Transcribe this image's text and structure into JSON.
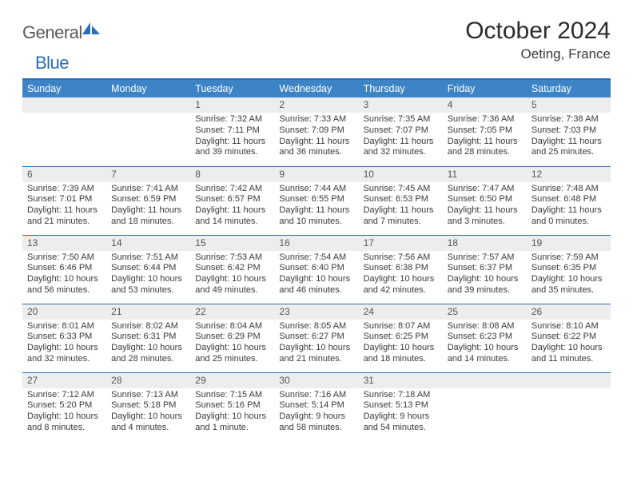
{
  "brand": {
    "name_a": "General",
    "name_b": "Blue"
  },
  "title": "October 2024",
  "location": "Oeting, France",
  "colors": {
    "header_bg": "#3d84c6",
    "accent": "#2a6fb5",
    "daynum_bg": "#ededed",
    "text": "#3a3a3a",
    "title_text": "#2b2b2b"
  },
  "weekdays": [
    "Sunday",
    "Monday",
    "Tuesday",
    "Wednesday",
    "Thursday",
    "Friday",
    "Saturday"
  ],
  "weeks": [
    [
      null,
      null,
      {
        "n": "1",
        "sr": "7:32 AM",
        "ss": "7:11 PM",
        "dl": "11 hours and 39 minutes."
      },
      {
        "n": "2",
        "sr": "7:33 AM",
        "ss": "7:09 PM",
        "dl": "11 hours and 36 minutes."
      },
      {
        "n": "3",
        "sr": "7:35 AM",
        "ss": "7:07 PM",
        "dl": "11 hours and 32 minutes."
      },
      {
        "n": "4",
        "sr": "7:36 AM",
        "ss": "7:05 PM",
        "dl": "11 hours and 28 minutes."
      },
      {
        "n": "5",
        "sr": "7:38 AM",
        "ss": "7:03 PM",
        "dl": "11 hours and 25 minutes."
      }
    ],
    [
      {
        "n": "6",
        "sr": "7:39 AM",
        "ss": "7:01 PM",
        "dl": "11 hours and 21 minutes."
      },
      {
        "n": "7",
        "sr": "7:41 AM",
        "ss": "6:59 PM",
        "dl": "11 hours and 18 minutes."
      },
      {
        "n": "8",
        "sr": "7:42 AM",
        "ss": "6:57 PM",
        "dl": "11 hours and 14 minutes."
      },
      {
        "n": "9",
        "sr": "7:44 AM",
        "ss": "6:55 PM",
        "dl": "11 hours and 10 minutes."
      },
      {
        "n": "10",
        "sr": "7:45 AM",
        "ss": "6:53 PM",
        "dl": "11 hours and 7 minutes."
      },
      {
        "n": "11",
        "sr": "7:47 AM",
        "ss": "6:50 PM",
        "dl": "11 hours and 3 minutes."
      },
      {
        "n": "12",
        "sr": "7:48 AM",
        "ss": "6:48 PM",
        "dl": "11 hours and 0 minutes."
      }
    ],
    [
      {
        "n": "13",
        "sr": "7:50 AM",
        "ss": "6:46 PM",
        "dl": "10 hours and 56 minutes."
      },
      {
        "n": "14",
        "sr": "7:51 AM",
        "ss": "6:44 PM",
        "dl": "10 hours and 53 minutes."
      },
      {
        "n": "15",
        "sr": "7:53 AM",
        "ss": "6:42 PM",
        "dl": "10 hours and 49 minutes."
      },
      {
        "n": "16",
        "sr": "7:54 AM",
        "ss": "6:40 PM",
        "dl": "10 hours and 46 minutes."
      },
      {
        "n": "17",
        "sr": "7:56 AM",
        "ss": "6:38 PM",
        "dl": "10 hours and 42 minutes."
      },
      {
        "n": "18",
        "sr": "7:57 AM",
        "ss": "6:37 PM",
        "dl": "10 hours and 39 minutes."
      },
      {
        "n": "19",
        "sr": "7:59 AM",
        "ss": "6:35 PM",
        "dl": "10 hours and 35 minutes."
      }
    ],
    [
      {
        "n": "20",
        "sr": "8:01 AM",
        "ss": "6:33 PM",
        "dl": "10 hours and 32 minutes."
      },
      {
        "n": "21",
        "sr": "8:02 AM",
        "ss": "6:31 PM",
        "dl": "10 hours and 28 minutes."
      },
      {
        "n": "22",
        "sr": "8:04 AM",
        "ss": "6:29 PM",
        "dl": "10 hours and 25 minutes."
      },
      {
        "n": "23",
        "sr": "8:05 AM",
        "ss": "6:27 PM",
        "dl": "10 hours and 21 minutes."
      },
      {
        "n": "24",
        "sr": "8:07 AM",
        "ss": "6:25 PM",
        "dl": "10 hours and 18 minutes."
      },
      {
        "n": "25",
        "sr": "8:08 AM",
        "ss": "6:23 PM",
        "dl": "10 hours and 14 minutes."
      },
      {
        "n": "26",
        "sr": "8:10 AM",
        "ss": "6:22 PM",
        "dl": "10 hours and 11 minutes."
      }
    ],
    [
      {
        "n": "27",
        "sr": "7:12 AM",
        "ss": "5:20 PM",
        "dl": "10 hours and 8 minutes."
      },
      {
        "n": "28",
        "sr": "7:13 AM",
        "ss": "5:18 PM",
        "dl": "10 hours and 4 minutes."
      },
      {
        "n": "29",
        "sr": "7:15 AM",
        "ss": "5:16 PM",
        "dl": "10 hours and 1 minute."
      },
      {
        "n": "30",
        "sr": "7:16 AM",
        "ss": "5:14 PM",
        "dl": "9 hours and 58 minutes."
      },
      {
        "n": "31",
        "sr": "7:18 AM",
        "ss": "5:13 PM",
        "dl": "9 hours and 54 minutes."
      },
      null,
      null
    ]
  ],
  "labels": {
    "sunrise": "Sunrise: ",
    "sunset": "Sunset: ",
    "daylight": "Daylight: "
  }
}
